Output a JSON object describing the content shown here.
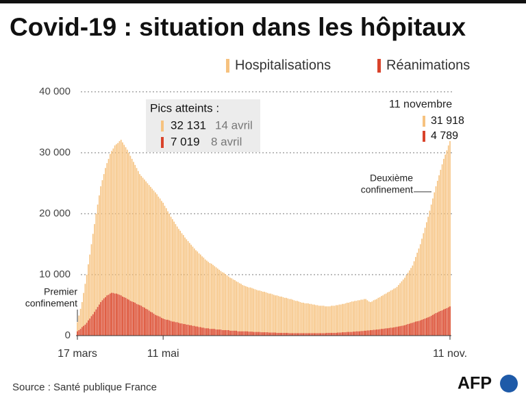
{
  "chart_data": {
    "type": "bar",
    "title": "Covid-19 : situation dans les hôpitaux",
    "source": "Source : Santé publique France",
    "logo": "AFP",
    "legend": "top-right",
    "grid": true,
    "ylim": [
      0,
      40000
    ],
    "yticks": [
      0,
      {
        "value": 10000,
        "label": "10 000"
      },
      {
        "value": 20000,
        "label": "20 000"
      },
      {
        "value": 30000,
        "label": "30 000"
      },
      {
        "value": 40000,
        "label": "40 000"
      }
    ],
    "categories": [
      "17 mars",
      null,
      null,
      null,
      null,
      null,
      null,
      null,
      null,
      null,
      null,
      null,
      null,
      null,
      null,
      null,
      null,
      null,
      null,
      null,
      null,
      null,
      null,
      null,
      null,
      null,
      null,
      null,
      null,
      null,
      null,
      null,
      null,
      null,
      null,
      null,
      null,
      null,
      null,
      null,
      null,
      null,
      null,
      null,
      null,
      null,
      null,
      null,
      null,
      null,
      null,
      null,
      null,
      null,
      null,
      "11 mai",
      null,
      null,
      null,
      null,
      null,
      null,
      null,
      null,
      null,
      null,
      null,
      null,
      null,
      null,
      null,
      null,
      null,
      null,
      null,
      null,
      null,
      null,
      null,
      null,
      null,
      null,
      null,
      null,
      null,
      null,
      null,
      null,
      null,
      null,
      null,
      null,
      null,
      null,
      null,
      null,
      null,
      null,
      null,
      null,
      null,
      null,
      null,
      null,
      null,
      null,
      null,
      null,
      null,
      null,
      null,
      null,
      null,
      null,
      null,
      null,
      null,
      null,
      null,
      null,
      null,
      null,
      null,
      null,
      null,
      null,
      null,
      null,
      null,
      null,
      null,
      null,
      null,
      null,
      null,
      null,
      null,
      null,
      null,
      null,
      null,
      null,
      null,
      null,
      null,
      null,
      null,
      null,
      null,
      null,
      null,
      null,
      null,
      null,
      null,
      null,
      null,
      null,
      null,
      null,
      null,
      null,
      null,
      null,
      null,
      null,
      null,
      null,
      null,
      null,
      null,
      null,
      null,
      null,
      null,
      null,
      null,
      null,
      null,
      null,
      null,
      null,
      null,
      null,
      null,
      null,
      null,
      null,
      null,
      null,
      null,
      null,
      null,
      null,
      null,
      null,
      null,
      null,
      null,
      null,
      null,
      null,
      null,
      null,
      null,
      null,
      null,
      null,
      null,
      null,
      null,
      null,
      null,
      null,
      null,
      null,
      null,
      null,
      null,
      null,
      null,
      null,
      null,
      null,
      null,
      null,
      null,
      null,
      null,
      null,
      null,
      null,
      null,
      null,
      null,
      null,
      null,
      null,
      null,
      "11 nov."
    ],
    "series": [
      {
        "name": "Hospitalisations",
        "color": "#f6c27f",
        "values": [
          2200,
          3300,
          4400,
          5500,
          7000,
          8500,
          10000,
          11700,
          13300,
          15000,
          16700,
          18300,
          20000,
          21500,
          23000,
          24500,
          25500,
          26500,
          27500,
          28300,
          29000,
          29800,
          30300,
          30700,
          31200,
          31400,
          31600,
          31900,
          32131,
          31700,
          31300,
          30900,
          30500,
          30000,
          29500,
          29000,
          28500,
          28000,
          27500,
          27000,
          26500,
          26200,
          25900,
          25600,
          25300,
          25000,
          24700,
          24400,
          24100,
          23800,
          23500,
          23200,
          22800,
          22500,
          22100,
          21800,
          21300,
          20900,
          20400,
          20000,
          19500,
          19100,
          18700,
          18300,
          17900,
          17500,
          17200,
          16800,
          16500,
          16100,
          15800,
          15500,
          15200,
          14900,
          14600,
          14300,
          14000,
          13800,
          13500,
          13300,
          13000,
          12800,
          12500,
          12300,
          12100,
          11900,
          11800,
          11600,
          11400,
          11200,
          11000,
          10800,
          10600,
          10400,
          10300,
          10100,
          9900,
          9700,
          9500,
          9400,
          9200,
          9100,
          8900,
          8800,
          8600,
          8500,
          8300,
          8200,
          8100,
          8000,
          7900,
          7900,
          7800,
          7700,
          7600,
          7500,
          7400,
          7400,
          7300,
          7200,
          7200,
          7100,
          7000,
          6900,
          6900,
          6800,
          6700,
          6600,
          6600,
          6500,
          6400,
          6400,
          6300,
          6200,
          6200,
          6100,
          6000,
          6000,
          5900,
          5800,
          5700,
          5700,
          5600,
          5500,
          5400,
          5400,
          5300,
          5300,
          5300,
          5200,
          5200,
          5100,
          5100,
          5000,
          5000,
          4900,
          4900,
          4900,
          4900,
          4800,
          4800,
          4800,
          4800,
          4900,
          4900,
          4900,
          5000,
          5000,
          5100,
          5100,
          5200,
          5200,
          5300,
          5400,
          5400,
          5500,
          5600,
          5600,
          5700,
          5700,
          5800,
          5800,
          5900,
          5900,
          6000,
          6000,
          5800,
          5600,
          5500,
          5600,
          5800,
          5900,
          6000,
          6200,
          6300,
          6500,
          6600,
          6800,
          6900,
          7100,
          7200,
          7400,
          7500,
          7700,
          7800,
          8000,
          8300,
          8600,
          8900,
          9200,
          9500,
          9900,
          10300,
          10700,
          11100,
          11500,
          12200,
          12900,
          13600,
          14300,
          15000,
          15900,
          16800,
          17700,
          18600,
          19500,
          20500,
          21500,
          22500,
          23500,
          24500,
          25400,
          26300,
          27200,
          28100,
          29000,
          29700,
          30400,
          31200,
          31918
        ]
      },
      {
        "name": "Réanimations",
        "color": "#d9432b",
        "values": [
          700,
          900,
          1100,
          1400,
          1600,
          1800,
          2100,
          2500,
          2800,
          3200,
          3500,
          3900,
          4300,
          4700,
          5100,
          5500,
          5800,
          6100,
          6300,
          6600,
          6700,
          6900,
          7019,
          7000,
          6900,
          6900,
          6800,
          6700,
          6600,
          6400,
          6300,
          6200,
          6000,
          5900,
          5700,
          5600,
          5500,
          5400,
          5200,
          5100,
          5000,
          4900,
          4700,
          4600,
          4400,
          4300,
          4100,
          3900,
          3800,
          3600,
          3400,
          3300,
          3200,
          3100,
          2900,
          2800,
          2700,
          2600,
          2600,
          2500,
          2400,
          2300,
          2300,
          2200,
          2200,
          2100,
          2000,
          2000,
          1900,
          1900,
          1800,
          1800,
          1700,
          1700,
          1600,
          1600,
          1500,
          1500,
          1400,
          1400,
          1300,
          1300,
          1200,
          1200,
          1200,
          1100,
          1100,
          1100,
          1100,
          1000,
          1000,
          1000,
          1000,
          900,
          900,
          900,
          900,
          900,
          800,
          800,
          800,
          800,
          800,
          700,
          700,
          700,
          700,
          700,
          700,
          700,
          650,
          650,
          650,
          600,
          600,
          600,
          600,
          600,
          550,
          550,
          550,
          550,
          550,
          500,
          500,
          500,
          500,
          500,
          450,
          450,
          450,
          450,
          450,
          450,
          450,
          450,
          400,
          400,
          400,
          400,
          400,
          400,
          400,
          400,
          400,
          400,
          400,
          400,
          400,
          400,
          400,
          400,
          400,
          400,
          400,
          400,
          400,
          400,
          400,
          400,
          450,
          450,
          450,
          450,
          450,
          450,
          450,
          500,
          500,
          500,
          550,
          550,
          550,
          600,
          600,
          600,
          600,
          650,
          650,
          700,
          700,
          700,
          750,
          750,
          800,
          800,
          850,
          850,
          900,
          900,
          950,
          950,
          1000,
          1000,
          1050,
          1100,
          1100,
          1150,
          1200,
          1200,
          1250,
          1300,
          1300,
          1350,
          1400,
          1450,
          1500,
          1550,
          1600,
          1650,
          1700,
          1800,
          1900,
          1950,
          2050,
          2100,
          2200,
          2300,
          2350,
          2400,
          2500,
          2600,
          2700,
          2800,
          2900,
          3000,
          3100,
          3250,
          3400,
          3550,
          3700,
          3800,
          3950,
          4050,
          4150,
          4300,
          4400,
          4500,
          4650,
          4789
        ]
      }
    ],
    "peaks": {
      "title": "Pics atteints :",
      "items": [
        {
          "value": 32131,
          "label": "32 131",
          "date": "14 avril"
        },
        {
          "value": 7019,
          "label": "7 019",
          "date": "8 avril"
        }
      ]
    },
    "latest": {
      "date": "11 novembre",
      "items": [
        {
          "value": 31918,
          "label": "31 918"
        },
        {
          "value": 4789,
          "label": "4 789"
        }
      ]
    },
    "annotations": [
      {
        "lines": [
          "Premier",
          "confinement"
        ]
      },
      {
        "lines": [
          "Deuxième",
          "confinement"
        ]
      }
    ]
  }
}
